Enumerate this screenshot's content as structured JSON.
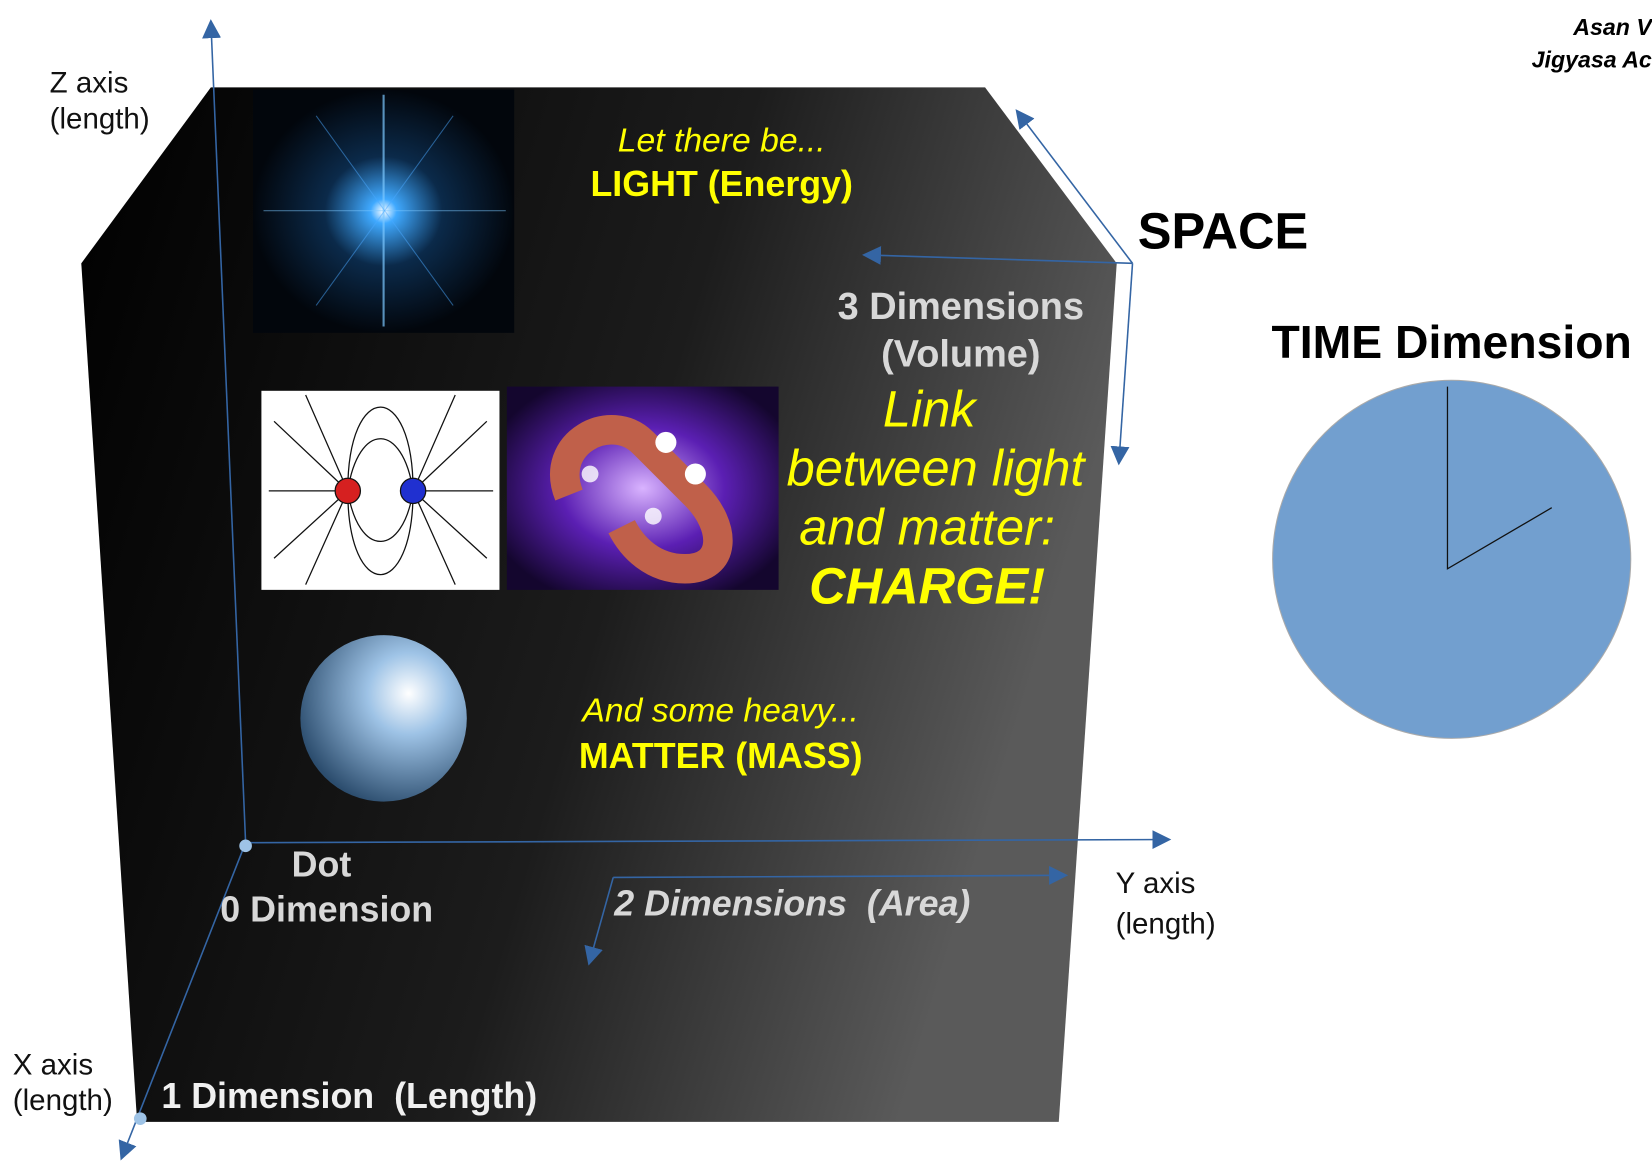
{
  "author": {
    "lines": [
      "Asan V",
      "Jigyasa Ac"
    ]
  },
  "axes": {
    "z": [
      "Z axis",
      "(length)"
    ],
    "x": [
      "X axis",
      "(length)"
    ],
    "y": [
      "Y axis",
      "(length)"
    ]
  },
  "light": {
    "intro": "Let there be...",
    "label": "LIGHT (Energy)"
  },
  "space": {
    "title": "SPACE",
    "dimension": [
      "3 Dimensions",
      "(Volume)"
    ]
  },
  "charge": {
    "lines": [
      "Link",
      "between light",
      "and matter:"
    ],
    "label": "CHARGE!"
  },
  "time": {
    "title": "TIME Dimension"
  },
  "matter": {
    "intro": "And some heavy...",
    "label": "MATTER (MASS)"
  },
  "dot": {
    "lines": [
      "Dot",
      "0 Dimension"
    ]
  },
  "area": {
    "label": "2 Dimensions  (Area)"
  },
  "length": {
    "label": "1 Dimension  (Length)"
  }
}
